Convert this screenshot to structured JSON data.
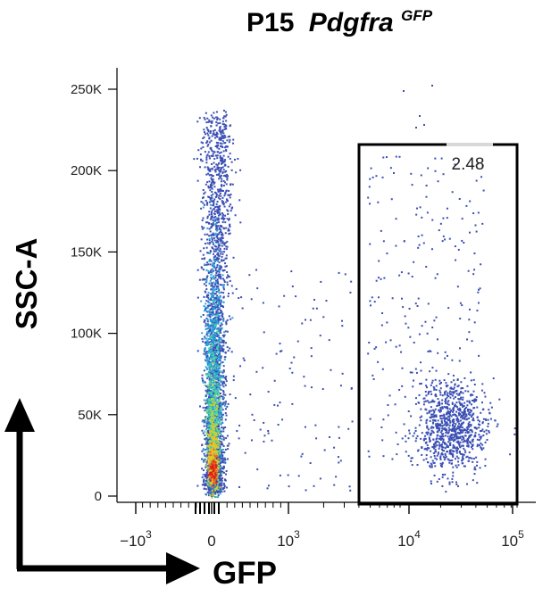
{
  "chart_data": {
    "type": "scatter",
    "title": "P15",
    "title_italic": "Pdgfra",
    "title_superscript": "GFP",
    "xlabel": "GFP",
    "ylabel": "SSC-A",
    "y_ticks": [
      {
        "value": 0,
        "label": "0"
      },
      {
        "value": 50000,
        "label": "50K"
      },
      {
        "value": 100000,
        "label": "100K"
      },
      {
        "value": 150000,
        "label": "150K"
      },
      {
        "value": 200000,
        "label": "200K"
      },
      {
        "value": 250000,
        "label": "250K"
      }
    ],
    "x_ticks": [
      {
        "base": "−10",
        "exp": "3"
      },
      {
        "base": "0",
        "exp": ""
      },
      {
        "base": "10",
        "exp": "3"
      },
      {
        "base": "10",
        "exp": "4"
      },
      {
        "base": "10",
        "exp": "5"
      }
    ],
    "ylim": [
      0,
      260000
    ],
    "x_scale": "biexponential",
    "gate": {
      "label": "2.48",
      "x_range": [
        3500,
        120000
      ],
      "y_range": [
        0,
        215000
      ]
    },
    "populations": [
      {
        "name": "GFP-negative",
        "x_center": 0,
        "y_center": 20000,
        "spread_x": "narrow",
        "y_max": 220000
      },
      {
        "name": "GFP-positive",
        "x_center": 30000,
        "y_center": 40000,
        "y_max": 215000
      }
    ],
    "colormap": [
      "#3a4fb4",
      "#2ba3d8",
      "#4fd3a4",
      "#b6d640",
      "#f2c01f",
      "#ef6a1c",
      "#e01e16"
    ]
  },
  "arrows": {
    "y_label": "SSC-A",
    "x_label": "GFP"
  }
}
